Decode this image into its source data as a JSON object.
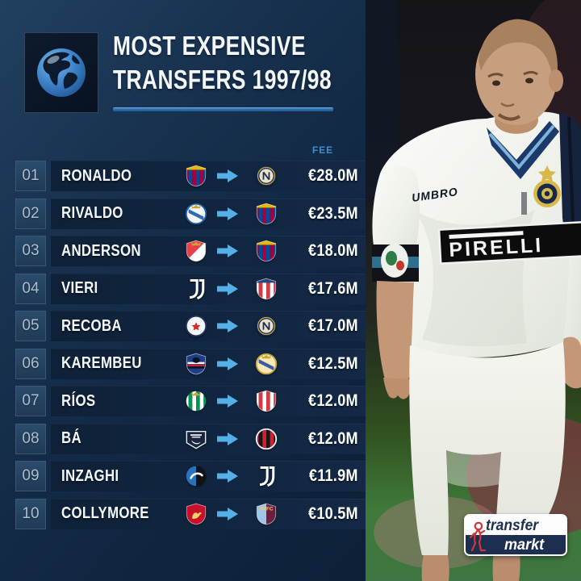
{
  "header": {
    "title_line1": "MOST EXPENSIVE",
    "title_line2": "TRANSFERS 1997/98",
    "underline_color": "#2d6fad",
    "globe_icon": "globe-americas-icon"
  },
  "table": {
    "fee_header": "FEE",
    "fee_header_color": "#3e8ed6",
    "arrow_color": "#56b0e8",
    "rows": [
      {
        "rank": "01",
        "player": "RONALDO",
        "fee": "€28.0M",
        "from": {
          "club": "fc-barcelona",
          "shape": "shield",
          "pattern": "stripes",
          "colors": [
            "#a50044",
            "#004d98"
          ],
          "chief": "#e8b800"
        },
        "to": {
          "club": "inter-milan",
          "shape": "circle",
          "pattern": "inter",
          "colors": [
            "#1a2b4c",
            "#e6e0cc"
          ],
          "ring": "#c9a84c"
        }
      },
      {
        "rank": "02",
        "player": "RIVALDO",
        "fee": "€23.5M",
        "from": {
          "club": "deportivo-la-coruna",
          "shape": "circle",
          "pattern": "solid",
          "colors": [
            "#f2f4f6"
          ],
          "ring": "#1b5fa8",
          "mark": "sash",
          "mark_color": "#1b5fa8",
          "crown": "#caa53d"
        },
        "to": {
          "club": "fc-barcelona",
          "shape": "shield",
          "pattern": "stripes",
          "colors": [
            "#a50044",
            "#004d98"
          ],
          "chief": "#e8b800"
        }
      },
      {
        "rank": "03",
        "player": "ANDERSON",
        "fee": "€18.0M",
        "from": {
          "club": "as-monaco",
          "shape": "shield",
          "pattern": "split-d",
          "colors": [
            "#e84048",
            "#ffffff"
          ],
          "crown": "#caa53d"
        },
        "to": {
          "club": "fc-barcelona",
          "shape": "shield",
          "pattern": "stripes",
          "colors": [
            "#a50044",
            "#004d98"
          ],
          "chief": "#e8b800"
        }
      },
      {
        "rank": "04",
        "player": "VIERI",
        "fee": "€17.6M",
        "from": {
          "club": "juventus",
          "shape": "glyph",
          "pattern": "juve",
          "colors": [
            "#ffffff"
          ]
        },
        "to": {
          "club": "atletico-madrid",
          "shape": "shield",
          "pattern": "stripes",
          "colors": [
            "#ffffff",
            "#d6393f"
          ],
          "chief": "#28457e"
        }
      },
      {
        "rank": "05",
        "player": "RECOBA",
        "fee": "€17.0M",
        "from": {
          "club": "nacional",
          "shape": "circle",
          "pattern": "solid",
          "colors": [
            "#f4f6f8"
          ],
          "ring": "#23355c",
          "mark": "star",
          "mark_color": "#d42a2a"
        },
        "to": {
          "club": "inter-milan",
          "shape": "circle",
          "pattern": "inter",
          "colors": [
            "#1a2b4c",
            "#e6e0cc"
          ],
          "ring": "#c9a84c"
        }
      },
      {
        "rank": "06",
        "player": "KAREMBEU",
        "fee": "€12.5M",
        "from": {
          "club": "sampdoria",
          "shape": "shield",
          "pattern": "solid",
          "colors": [
            "#1c3f8c"
          ],
          "mark": "hoops"
        },
        "to": {
          "club": "real-madrid",
          "shape": "circle",
          "pattern": "solid",
          "colors": [
            "#f7e9b6"
          ],
          "ring": "#caa53d",
          "crown": "#caa53d",
          "mark": "sash",
          "mark_color": "#2a4f9e"
        }
      },
      {
        "rank": "07",
        "player": "RÍOS",
        "fee": "€12.0M",
        "from": {
          "club": "real-betis",
          "shape": "circle",
          "pattern": "stripes",
          "colors": [
            "#ffffff",
            "#009655"
          ],
          "crown": "#caa53d"
        },
        "to": {
          "club": "athletic-bilbao",
          "shape": "shield",
          "pattern": "stripes",
          "colors": [
            "#ffffff",
            "#d6393f"
          ]
        }
      },
      {
        "rank": "08",
        "player": "BÁ",
        "fee": "€12.0M",
        "from": {
          "club": "girondins-bordeaux",
          "shape": "scroll",
          "pattern": "solid",
          "colors": [
            "#17263e"
          ],
          "mark": "crescent"
        },
        "to": {
          "club": "ac-milan",
          "shape": "circle",
          "pattern": "stripes",
          "colors": [
            "#d12030",
            "#16161a"
          ],
          "ring": "#f0f0f0"
        }
      },
      {
        "rank": "09",
        "player": "INZAGHI",
        "fee": "€11.9M",
        "from": {
          "club": "atalanta",
          "shape": "circle",
          "pattern": "split-v",
          "colors": [
            "#2a72bd",
            "#121216"
          ],
          "mark": "swoosh"
        },
        "to": {
          "club": "juventus",
          "shape": "glyph",
          "pattern": "juve",
          "colors": [
            "#ffffff"
          ]
        }
      },
      {
        "rank": "10",
        "player": "COLLYMORE",
        "fee": "€10.5M",
        "from": {
          "club": "liverpool",
          "shape": "shield",
          "pattern": "solid",
          "colors": [
            "#c8102e"
          ],
          "mark": "bird",
          "mark_color": "#f0d060"
        },
        "to": {
          "club": "aston-villa",
          "shape": "shield",
          "pattern": "split-v",
          "colors": [
            "#9dc6e8",
            "#6b1f3f"
          ],
          "label": "AVFC",
          "label_color": "#efd06a"
        }
      }
    ]
  },
  "photo": {
    "description": "ronaldo-inter-away-kit-photo",
    "shirt_text_sponsor": "PIRELLI",
    "shirt_text_brand": "UMBRO"
  },
  "logo": {
    "line1": "transfer",
    "line2": "markt",
    "navy": "#1c2f50",
    "red": "#d2343a"
  },
  "chart_data": {
    "type": "table",
    "title": "MOST EXPENSIVE TRANSFERS 1997/98",
    "columns": [
      "rank",
      "player",
      "from_club",
      "to_club",
      "fee"
    ],
    "rows": [
      [
        1,
        "Ronaldo",
        "FC Barcelona",
        "Inter Milan",
        "€28.0M"
      ],
      [
        2,
        "Rivaldo",
        "Deportivo La Coruña",
        "FC Barcelona",
        "€23.5M"
      ],
      [
        3,
        "Anderson",
        "AS Monaco",
        "FC Barcelona",
        "€18.0M"
      ],
      [
        4,
        "Vieri",
        "Juventus",
        "Atlético Madrid",
        "€17.6M"
      ],
      [
        5,
        "Recoba",
        "Nacional",
        "Inter Milan",
        "€17.0M"
      ],
      [
        6,
        "Karembeu",
        "Sampdoria",
        "Real Madrid",
        "€12.5M"
      ],
      [
        7,
        "Ríos",
        "Real Betis",
        "Athletic Bilbao",
        "€12.0M"
      ],
      [
        8,
        "Bá",
        "Girondins Bordeaux",
        "AC Milan",
        "€12.0M"
      ],
      [
        9,
        "Inzaghi",
        "Atalanta",
        "Juventus",
        "€11.9M"
      ],
      [
        10,
        "Collymore",
        "Liverpool",
        "Aston Villa",
        "€10.5M"
      ]
    ],
    "fee_values_eur_m": [
      28.0,
      23.5,
      18.0,
      17.6,
      17.0,
      12.5,
      12.0,
      12.0,
      11.9,
      10.5
    ]
  }
}
